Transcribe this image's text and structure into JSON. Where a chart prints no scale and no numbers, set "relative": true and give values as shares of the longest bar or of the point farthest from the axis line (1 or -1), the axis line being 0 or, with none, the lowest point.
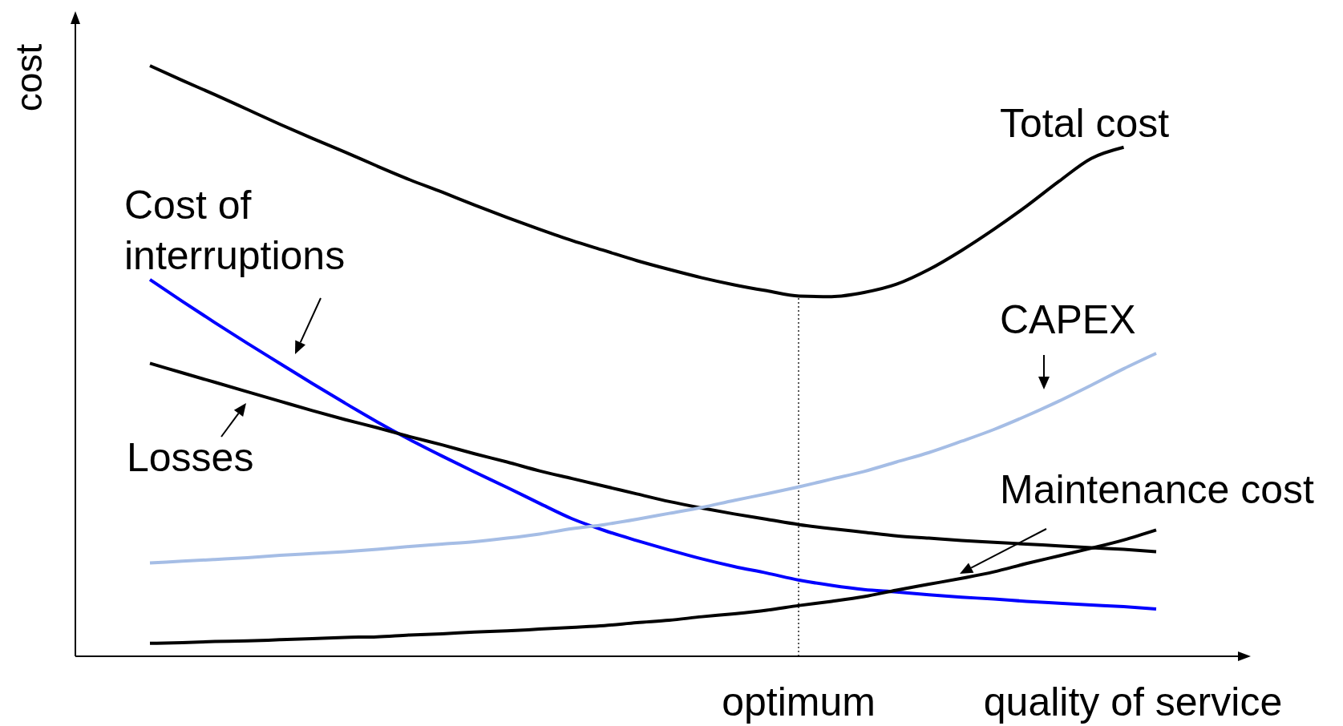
{
  "chart_data": {
    "type": "line",
    "relative": true,
    "xlabel": "quality of service",
    "ylabel": "cost",
    "categories": [
      null,
      null,
      null,
      null,
      null,
      null,
      null,
      null,
      null,
      null,
      null,
      null,
      null,
      null,
      null,
      null,
      null,
      null,
      null,
      null,
      null,
      null,
      null,
      null,
      null,
      null,
      null,
      null,
      null,
      null,
      null,
      null
    ],
    "annotations": [
      "optimum"
    ],
    "series": [
      {
        "name": "Total cost",
        "color": "#000000",
        "values": [
          1,
          0.975,
          0.951,
          0.926,
          0.901,
          0.877,
          0.854,
          0.83,
          0.807,
          0.786,
          0.764,
          0.743,
          0.723,
          0.704,
          0.687,
          0.67,
          0.655,
          0.641,
          0.629,
          0.619,
          0.61,
          0.609,
          0.616,
          0.63,
          0.655,
          0.687,
          0.723,
          0.762,
          0.804,
          0.843,
          0.862,
          null
        ]
      },
      {
        "name": "Cost of interruptions",
        "color": "#0000ff",
        "values": [
          0.638,
          0.601,
          0.565,
          0.53,
          0.496,
          0.462,
          0.429,
          0.397,
          0.367,
          0.339,
          0.312,
          0.286,
          0.259,
          0.233,
          0.213,
          0.196,
          0.18,
          0.165,
          0.152,
          0.141,
          0.129,
          0.12,
          0.113,
          0.109,
          0.104,
          0.1,
          0.097,
          0.093,
          0.09,
          0.087,
          0.084,
          0.08
        ]
      },
      {
        "name": "Losses",
        "color": "#000000",
        "values": [
          0.496,
          0.48,
          0.464,
          0.448,
          0.432,
          0.416,
          0.401,
          0.387,
          0.372,
          0.358,
          0.343,
          0.329,
          0.314,
          0.301,
          0.288,
          0.275,
          0.262,
          0.251,
          0.241,
          0.232,
          0.223,
          0.216,
          0.21,
          0.204,
          0.2,
          0.196,
          0.193,
          0.19,
          0.187,
          0.184,
          0.181,
          0.177
        ]
      },
      {
        "name": "CAPEX",
        "color": "#a5bde5",
        "values": [
          0.158,
          0.161,
          0.164,
          0.167,
          0.171,
          0.174,
          0.177,
          0.181,
          0.186,
          0.19,
          0.194,
          0.2,
          0.207,
          0.216,
          0.223,
          0.232,
          0.242,
          0.252,
          0.264,
          0.275,
          0.287,
          0.3,
          0.313,
          0.329,
          0.345,
          0.364,
          0.384,
          0.407,
          0.432,
          0.459,
          0.487,
          0.513
        ]
      },
      {
        "name": "Maintenance cost",
        "color": "#000000",
        "values": [
          0.022,
          0.023,
          0.025,
          0.026,
          0.028,
          0.03,
          0.032,
          0.033,
          0.036,
          0.038,
          0.041,
          0.043,
          0.046,
          0.049,
          0.052,
          0.057,
          0.061,
          0.067,
          0.072,
          0.078,
          0.086,
          0.093,
          0.101,
          0.112,
          0.122,
          0.132,
          0.143,
          0.157,
          0.17,
          0.183,
          0.197,
          0.214
        ]
      }
    ]
  }
}
